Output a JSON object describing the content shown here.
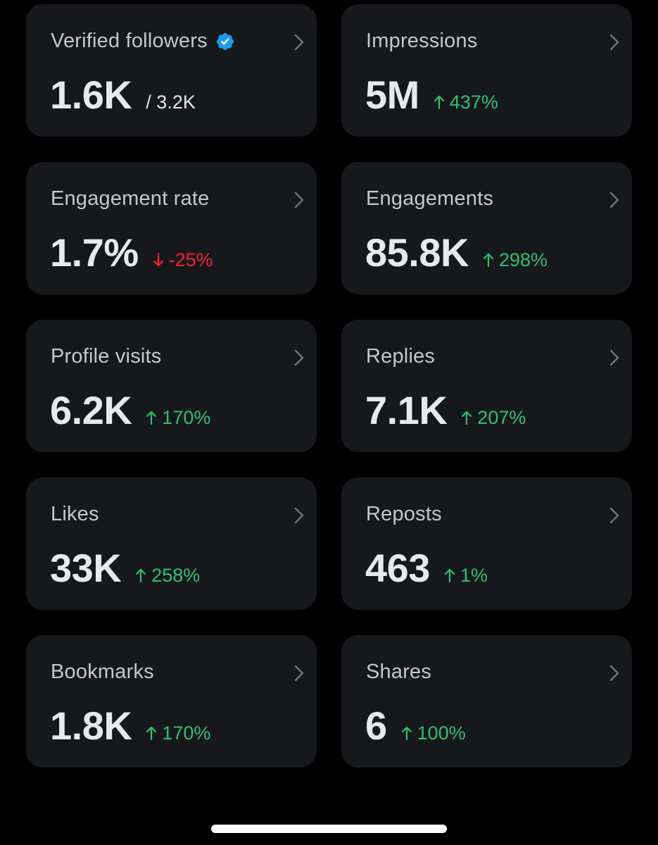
{
  "colors": {
    "background": "#000000",
    "card": "#16181c",
    "title": "#c4c7cb",
    "value": "#e7e9ea",
    "positive": "#2fbf71",
    "negative": "#f4212e",
    "verified_badge": "#1d9bf0"
  },
  "metrics": [
    {
      "title": "Verified followers",
      "value": "1.6K",
      "total": "/ 3.2K",
      "verified_icon": "verified-badge-icon"
    },
    {
      "title": "Impressions",
      "value": "5M",
      "change": "437%",
      "direction": "up"
    },
    {
      "title": "Engagement rate",
      "value": "1.7%",
      "change": "-25%",
      "direction": "down"
    },
    {
      "title": "Engagements",
      "value": "85.8K",
      "change": "298%",
      "direction": "up"
    },
    {
      "title": "Profile visits",
      "value": "6.2K",
      "change": "170%",
      "direction": "up"
    },
    {
      "title": "Replies",
      "value": "7.1K",
      "change": "207%",
      "direction": "up"
    },
    {
      "title": "Likes",
      "value": "33K",
      "change": "258%",
      "direction": "up"
    },
    {
      "title": "Reposts",
      "value": "463",
      "change": "1%",
      "direction": "up"
    },
    {
      "title": "Bookmarks",
      "value": "1.8K",
      "change": "170%",
      "direction": "up"
    },
    {
      "title": "Shares",
      "value": "6",
      "change": "100%",
      "direction": "up"
    }
  ],
  "icons": {
    "chevron": "chevron-right-icon",
    "up": "arrow-up-icon",
    "down": "arrow-down-icon"
  }
}
